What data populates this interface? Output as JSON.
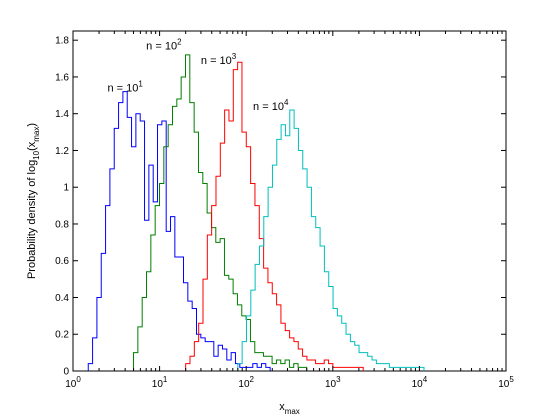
{
  "chart_data": {
    "type": "line",
    "style": "stairs histogram",
    "xscale": "log",
    "xlim": [
      1,
      100000
    ],
    "ylim": [
      0,
      1.85
    ],
    "x_ticks": [
      {
        "value": 1,
        "base": "10",
        "exp": "0"
      },
      {
        "value": 10,
        "base": "10",
        "exp": "1"
      },
      {
        "value": 100,
        "base": "10",
        "exp": "2"
      },
      {
        "value": 1000,
        "base": "10",
        "exp": "3"
      },
      {
        "value": 10000,
        "base": "10",
        "exp": "4"
      },
      {
        "value": 100000,
        "base": "10",
        "exp": "5"
      }
    ],
    "y_ticks": [
      0,
      0.2,
      0.4,
      0.6,
      0.8,
      1,
      1.2,
      1.4,
      1.6,
      1.8
    ],
    "y_tick_labels": [
      "0",
      "0.2",
      "0.4",
      "0.6",
      "0.8",
      "1",
      "1.2",
      "1.4",
      "1.6",
      "1.8"
    ],
    "xlabel": {
      "main": "x",
      "sub": "max"
    },
    "ylabel": {
      "pre": "Probability density of log",
      "sub1": "10",
      "mid": "(x",
      "sub2": "max",
      "post": ")"
    },
    "grid": false,
    "bin_log_width": 0.05,
    "series": [
      {
        "color": "#0000ff",
        "label": {
          "base": "n = 10",
          "exp": "1",
          "x": 2.5,
          "y": 1.52
        },
        "start_x": 1.5,
        "values": [
          0.04,
          0.18,
          0.4,
          0.64,
          0.9,
          1.1,
          1.32,
          1.46,
          1.52,
          1.38,
          1.22,
          1.4,
          1.36,
          0.82,
          1.12,
          0.92,
          1.34,
          1.36,
          0.76,
          0.84,
          0.62,
          0.62,
          0.48,
          0.38,
          0.34,
          0.2,
          0.18,
          0.16,
          0.16,
          0.08,
          0.14,
          0.12,
          0.06,
          0.1,
          0.04,
          0.02,
          0.02,
          0.02,
          0.04,
          0.02,
          0.04,
          0.02
        ]
      },
      {
        "color": "#007f00",
        "label": {
          "base": "n = 10",
          "exp": "2",
          "x": 7,
          "y": 1.75
        },
        "start_x": 5,
        "values": [
          0.1,
          0.24,
          0.4,
          0.54,
          0.74,
          0.9,
          1.02,
          1.22,
          1.34,
          1.44,
          1.48,
          1.6,
          1.72,
          1.46,
          1.3,
          1.08,
          1.02,
          0.86,
          0.78,
          0.7,
          0.72,
          0.52,
          0.5,
          0.42,
          0.36,
          0.3,
          0.28,
          0.16,
          0.1,
          0.1,
          0.08,
          0.08,
          0.04,
          0.06,
          0.04,
          0.06,
          0.02,
          0.04,
          0.02,
          0.02
        ]
      },
      {
        "color": "#ff0000",
        "label": {
          "base": "n = 10",
          "exp": "3",
          "x": 30,
          "y": 1.67
        },
        "start_x": 20,
        "values": [
          0.04,
          0.08,
          0.16,
          0.26,
          0.5,
          0.74,
          0.9,
          1.06,
          1.24,
          1.42,
          1.36,
          1.64,
          1.68,
          1.3,
          1.22,
          1.02,
          0.9,
          0.72,
          0.56,
          0.48,
          0.42,
          0.36,
          0.26,
          0.22,
          0.18,
          0.16,
          0.12,
          0.08,
          0.06,
          0.06,
          0.04,
          0.04,
          0.06,
          0.04,
          0.02,
          0.02,
          0.02,
          0.02,
          0.02,
          0.02,
          0.02
        ]
      },
      {
        "color": "#00bfbf",
        "label": {
          "base": "n = 10",
          "exp": "4",
          "x": 120,
          "y": 1.42
        },
        "start_x": 80,
        "values": [
          0.04,
          0.16,
          0.3,
          0.44,
          0.58,
          0.68,
          0.84,
          1.0,
          1.12,
          1.26,
          1.34,
          1.28,
          1.42,
          1.32,
          1.2,
          1.1,
          1.0,
          0.84,
          0.78,
          0.68,
          0.54,
          0.46,
          0.34,
          0.3,
          0.26,
          0.2,
          0.16,
          0.14,
          0.1,
          0.1,
          0.08,
          0.06,
          0.04,
          0.04,
          0.04,
          0.02,
          0.02,
          0.02,
          0.02,
          0.02,
          0.02,
          0.02,
          0.02
        ]
      }
    ]
  }
}
